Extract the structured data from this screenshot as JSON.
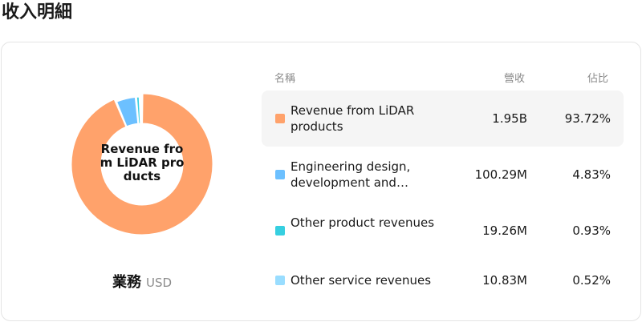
{
  "page": {
    "title": "收入明細"
  },
  "donut": {
    "center_label": "Revenue from LiDAR products",
    "caption_main": "業務",
    "caption_sub": "USD"
  },
  "table": {
    "headers": {
      "name": "名稱",
      "revenue": "營收",
      "share": "佔比"
    },
    "rows": [
      {
        "name": "Revenue from LiDAR products",
        "revenue": "1.95B",
        "share": "93.72%",
        "color": "#FFA26B",
        "selected": true
      },
      {
        "name": "Engineering design, development and…",
        "revenue": "100.29M",
        "share": "4.83%",
        "color": "#6CC0FF",
        "selected": false
      },
      {
        "name": "Other product revenues",
        "revenue": "19.26M",
        "share": "0.93%",
        "color": "#36CFE0",
        "selected": false
      },
      {
        "name": "Other service revenues",
        "revenue": "10.83M",
        "share": "0.52%",
        "color": "#99DDFF",
        "selected": false
      }
    ]
  },
  "chart_data": {
    "type": "pie",
    "categories": [
      "Revenue from LiDAR products",
      "Engineering design, development and…",
      "Other product revenues",
      "Other service revenues"
    ],
    "values": [
      93.72,
      4.83,
      0.93,
      0.52
    ],
    "colors": [
      "#FFA26B",
      "#6CC0FF",
      "#36CFE0",
      "#99DDFF"
    ],
    "highlighted": "Revenue from LiDAR products"
  }
}
